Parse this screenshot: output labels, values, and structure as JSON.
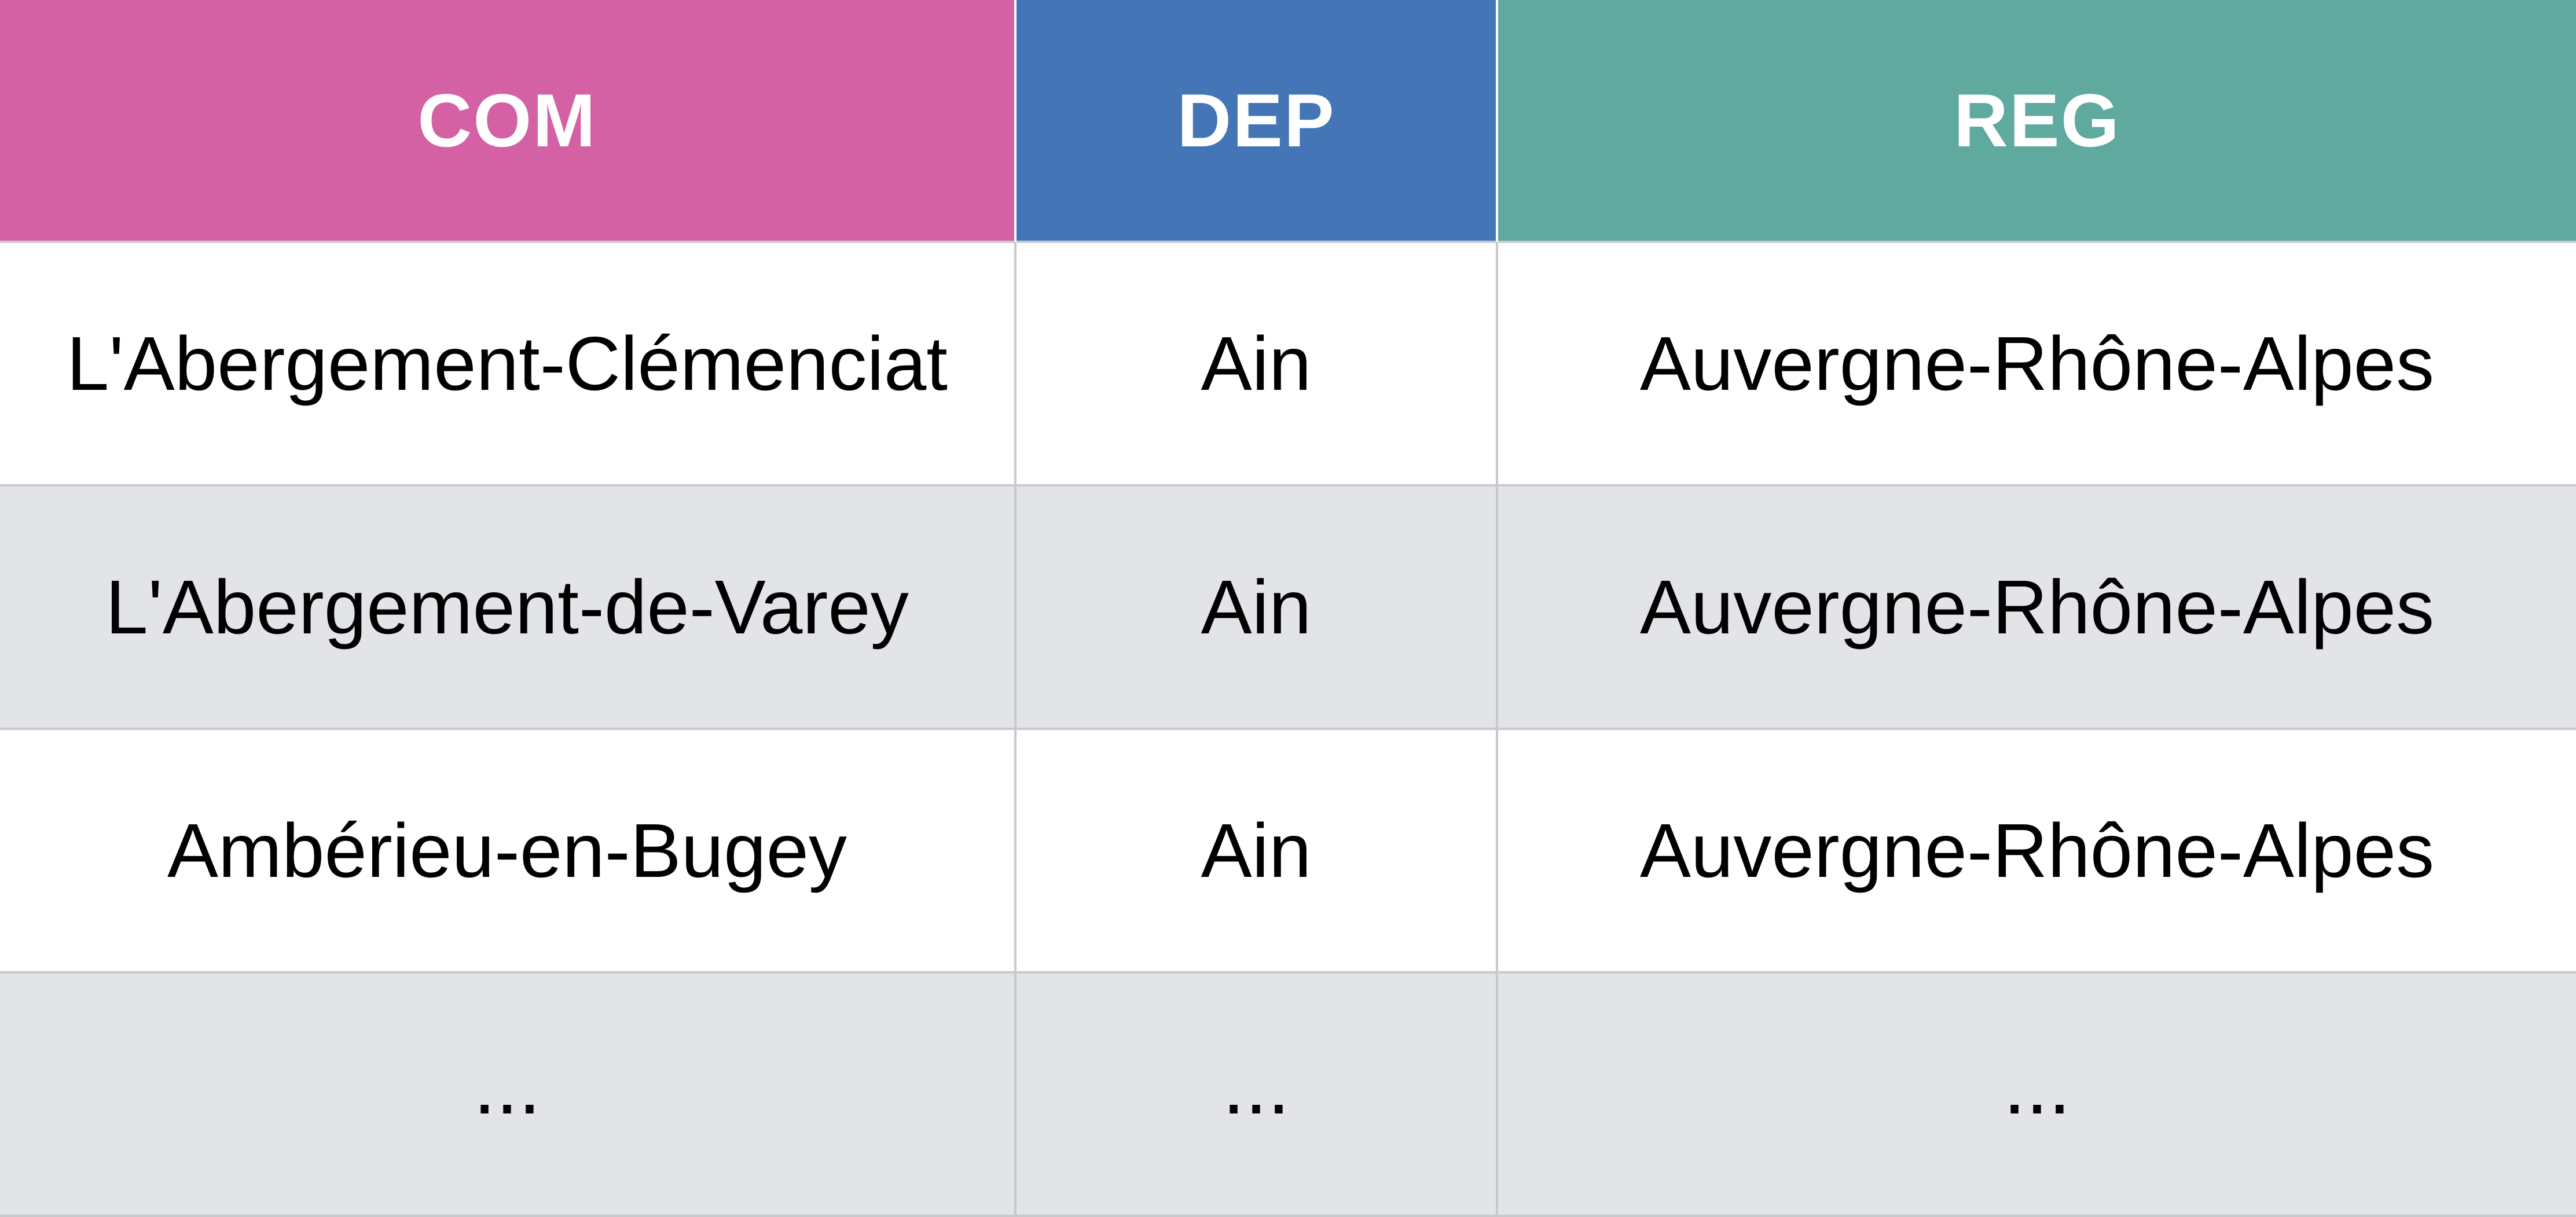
{
  "table": {
    "columns": [
      {
        "label": "COM",
        "color": "#d361a3"
      },
      {
        "label": "DEP",
        "color": "#4476b7"
      },
      {
        "label": "REG",
        "color": "#5fa99e"
      }
    ],
    "rows": [
      [
        "L'Abergement-Clémenciat",
        "Ain",
        "Auvergne-Rhône-Alpes"
      ],
      [
        "L'Abergement-de-Varey",
        "Ain",
        "Auvergne-Rhône-Alpes"
      ],
      [
        "Ambérieu-en-Bugey",
        "Ain",
        "Auvergne-Rhône-Alpes"
      ],
      [
        "...",
        "...",
        "..."
      ]
    ],
    "row_colors": [
      "#ffffff",
      "#e3e4e8"
    ]
  }
}
